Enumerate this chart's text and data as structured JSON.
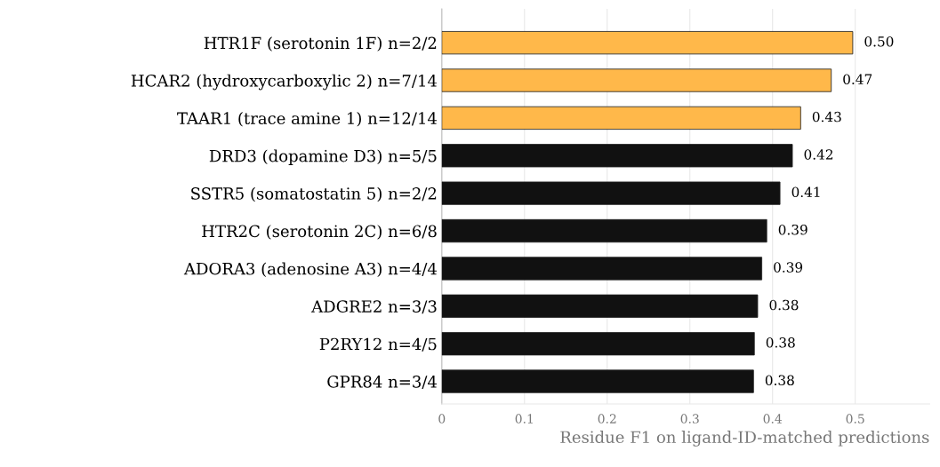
{
  "chart_data": {
    "type": "bar",
    "orientation": "horizontal",
    "xlabel": "Residue F1 on ligand-ID-matched predictions",
    "categories": [
      "HTR1F (serotonin 1F) n=2/2",
      "HCAR2 (hydroxycarboxylic 2) n=7/14",
      "TAAR1 (trace amine 1) n=12/14",
      "DRD3 (dopamine D3) n=5/5",
      "SSTR5 (somatostatin 5) n=2/2",
      "HTR2C (serotonin 2C) n=6/8",
      "ADORA3 (adenosine A3) n=4/4",
      "ADGRE2 n=3/3",
      "P2RY12 n=4/5",
      "GPR84 n=3/4"
    ],
    "values": [
      0.497,
      0.471,
      0.434,
      0.424,
      0.409,
      0.393,
      0.387,
      0.382,
      0.378,
      0.377
    ],
    "value_labels": [
      "0.50",
      "0.47",
      "0.43",
      "0.42",
      "0.41",
      "0.39",
      "0.39",
      "0.38",
      "0.38",
      "0.38"
    ],
    "colors": [
      "#ffb84a",
      "#ffb84a",
      "#ffb84a",
      "#111111",
      "#111111",
      "#111111",
      "#111111",
      "#111111",
      "#111111",
      "#111111"
    ],
    "xlim": [
      0,
      0.59
    ],
    "xticks": [
      0,
      0.1,
      0.2,
      0.3,
      0.4,
      0.5
    ],
    "grid": "x",
    "legend": false
  }
}
